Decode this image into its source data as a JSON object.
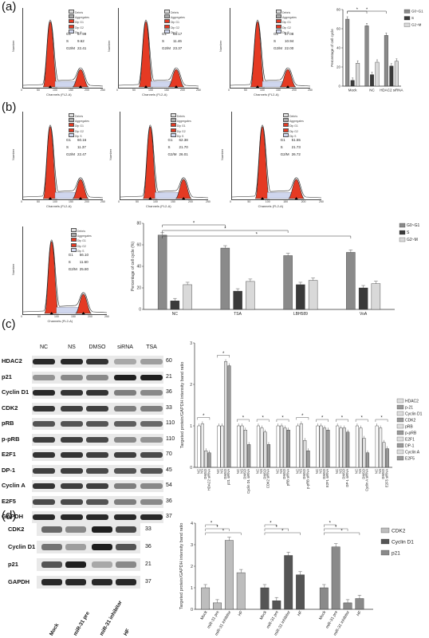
{
  "panels": {
    "a": "(a)",
    "b": "(b)",
    "c": "(c)",
    "d": "(d)"
  },
  "histogram": {
    "legend_items": [
      "Debris",
      "Aggregates",
      "Dip G1",
      "Dip G2",
      "Dip S"
    ],
    "ylabel": "Number",
    "xlabel": "Channels (FL2-A)",
    "xticks": [
      "0",
      "50",
      "100",
      "150",
      "200",
      "250"
    ],
    "stat_labels": [
      "G1",
      "S",
      "G2/M"
    ],
    "a": [
      {
        "values": [
          "57.99",
          "9.62",
          "22.41"
        ]
      },
      {
        "values": [
          "65.17",
          "11.46",
          "23.37"
        ]
      },
      {
        "values": [
          "67.08",
          "10.94",
          "22.00"
        ]
      }
    ],
    "b": [
      {
        "values": [
          "60.16",
          "11.37",
          "22.47"
        ]
      },
      {
        "values": [
          "62.38",
          "21.70",
          "26.01"
        ]
      },
      {
        "values": [
          "51.55",
          "21.73",
          "26.72"
        ]
      },
      {
        "values": [
          "56.10",
          "11.60",
          "25.80"
        ]
      }
    ]
  },
  "chart_a": {
    "type": "bar",
    "categories": [
      "Mock",
      "NC",
      "HDAC2 siRNA"
    ],
    "series": [
      {
        "name": "G0~G1",
        "values": [
          70,
          63,
          53
        ]
      },
      {
        "name": "S",
        "values": [
          6,
          12,
          21
        ]
      },
      {
        "name": "G2~M",
        "values": [
          24,
          25,
          26
        ]
      }
    ],
    "ylabel": "Percentage of cell cycle",
    "ylim": [
      0,
      80
    ],
    "yticks": [
      "0",
      "20",
      "40",
      "60",
      "80"
    ],
    "sig": "*"
  },
  "chart_b": {
    "type": "bar",
    "categories": [
      "NC",
      "TSA",
      "LBH589",
      "VoA"
    ],
    "series": [
      {
        "name": "G0~G1",
        "values": [
          69,
          57,
          50,
          53
        ]
      },
      {
        "name": "S",
        "values": [
          8,
          17,
          23,
          20
        ]
      },
      {
        "name": "G2~M",
        "values": [
          23,
          26,
          27,
          24
        ]
      }
    ],
    "ylabel": "Percentage of cell cycle (%)",
    "ylim": [
      0,
      80
    ],
    "yticks": [
      "0",
      "20",
      "40",
      "60",
      "80"
    ],
    "sig": "*"
  },
  "blot_c": {
    "columns": [
      "NC",
      "NS",
      "DMSO",
      "siRNA",
      "TSA"
    ],
    "rows": [
      {
        "label": "HDAC2",
        "kd": "60"
      },
      {
        "label": "p21",
        "kd": "21"
      },
      {
        "label": "Cyclin D1",
        "kd": "36"
      },
      {
        "label": "CDK2",
        "kd": "33"
      },
      {
        "label": "pRB",
        "kd": "110"
      },
      {
        "label": "p-pRB",
        "kd": "110"
      },
      {
        "label": "E2F1",
        "kd": "70"
      },
      {
        "label": "DP-1",
        "kd": "45"
      },
      {
        "label": "Cyclin A",
        "kd": "54"
      },
      {
        "label": "E2F5",
        "kd": "36"
      },
      {
        "label": "GAPDH",
        "kd": "37"
      }
    ]
  },
  "chart_c": {
    "type": "bar",
    "ylabel": "Targeted protein/GAPDH intensity band ratio",
    "ylim": [
      0,
      3
    ],
    "yticks": [
      "0",
      "1",
      "2",
      "3"
    ],
    "groups": [
      "HDAC2",
      "p21",
      "Cyclin D1",
      "CDK2",
      "pRB",
      "p-pRB",
      "E2F1",
      "DP-1",
      "Cyclin A",
      "E2F5"
    ],
    "conditions": [
      "NC",
      "NS",
      "DMSO",
      "siRNA"
    ],
    "group_values": [
      [
        1.0,
        1.05,
        0.4,
        0.35
      ],
      [
        1.0,
        1.0,
        2.55,
        2.45
      ],
      [
        1.0,
        1.0,
        0.9,
        0.55
      ],
      [
        1.0,
        0.95,
        0.85,
        0.55
      ],
      [
        1.0,
        1.0,
        0.95,
        0.9
      ],
      [
        1.0,
        1.05,
        0.65,
        0.4
      ],
      [
        1.0,
        1.0,
        0.95,
        0.9
      ],
      [
        1.0,
        0.95,
        0.95,
        0.85
      ],
      [
        1.0,
        0.95,
        0.7,
        0.35
      ],
      [
        1.0,
        0.95,
        0.6,
        0.45
      ]
    ],
    "legend": [
      "HDAC2",
      "p-21",
      "Cyclin D1",
      "CDK2",
      "pRB",
      "p-pRB",
      "E2F1",
      "DP-1",
      "Cyclin A",
      "E2F5"
    ],
    "sig": "*"
  },
  "blot_d": {
    "rows": [
      {
        "label": "CDK2",
        "kd": "33"
      },
      {
        "label": "Cyclin D1",
        "kd": "36"
      },
      {
        "label": "p21",
        "kd": "21"
      },
      {
        "label": "GAPDH",
        "kd": "37"
      }
    ],
    "columns": [
      "Mock",
      "miR-31 pre",
      "miR-31 inhibitor",
      "HF"
    ]
  },
  "chart_d": {
    "type": "bar",
    "ylabel": "Targeted protein/GAPDH intensity band ratio",
    "ylim": [
      0,
      4
    ],
    "yticks": [
      "0",
      "1",
      "2",
      "3",
      "4"
    ],
    "categories": [
      "Mock",
      "miR-31 pre",
      "miR-31 inhibitor",
      "HF"
    ],
    "series": [
      {
        "name": "CDK2",
        "values": [
          1.0,
          0.3,
          3.2,
          1.7
        ]
      },
      {
        "name": "Cyclin D1",
        "values": [
          1.0,
          0.4,
          2.5,
          1.6
        ]
      },
      {
        "name": "p21",
        "values": [
          1.0,
          2.9,
          0.3,
          0.5
        ]
      }
    ],
    "sig": "*"
  }
}
